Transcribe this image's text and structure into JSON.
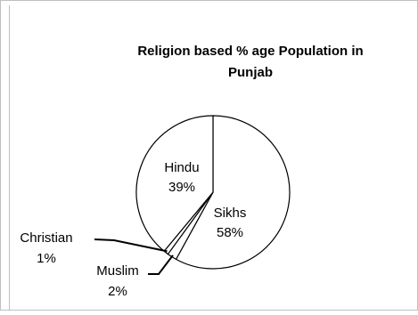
{
  "chart_data": {
    "type": "pie",
    "title": "Religion based % age Population in Punjab",
    "title_lines": [
      "Religion based % age Population in",
      "Punjab"
    ],
    "categories": [
      "Sikhs",
      "Muslim",
      "Christian",
      "Hindu"
    ],
    "values": [
      58,
      2,
      1,
      39
    ],
    "value_labels": [
      "58%",
      "2%",
      "1%",
      "39%"
    ],
    "slice_fill": "#ffffff",
    "slice_stroke": "#000000",
    "legend": "none",
    "data_labels": true
  }
}
